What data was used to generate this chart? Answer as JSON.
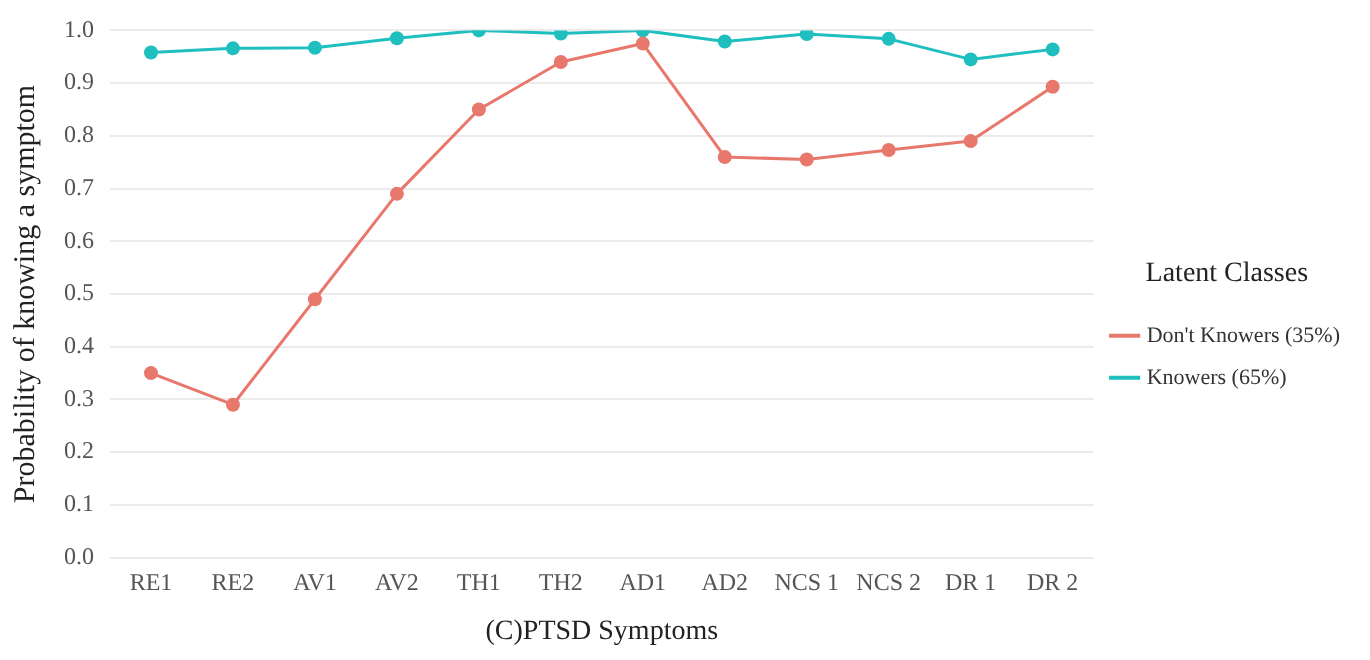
{
  "chart_data": {
    "type": "line",
    "xlabel": "(C)PTSD Symptoms",
    "ylabel": "Probability of knowing a symptom",
    "legend_title": "Latent Classes",
    "categories": [
      "RE1",
      "RE2",
      "AV1",
      "AV2",
      "TH1",
      "TH2",
      "AD1",
      "AD2",
      "NCS 1",
      "NCS 2",
      "DR 1",
      "DR 2"
    ],
    "series": [
      {
        "name": "Don't Knowers (35%)",
        "color": "#e8776c",
        "values": [
          0.35,
          0.29,
          0.49,
          0.69,
          0.85,
          0.94,
          0.975,
          0.76,
          0.755,
          0.773,
          0.79,
          0.893
        ]
      },
      {
        "name": "Knowers (65%)",
        "color": "#1fbfbf",
        "values": [
          0.958,
          0.966,
          0.967,
          0.985,
          1.0,
          0.994,
          1.0,
          0.979,
          0.993,
          0.984,
          0.945,
          0.964
        ]
      }
    ],
    "ylim": [
      0,
      1
    ],
    "yticks": [
      {
        "value": 0,
        "label": "0.0"
      },
      0.1,
      0.2,
      0.3,
      0.4,
      0.5,
      0.6,
      0.7,
      0.8,
      0.9,
      {
        "value": 1,
        "label": "1.0"
      }
    ],
    "grid": "y",
    "legend": "right",
    "marker": "circle",
    "line_style": "solid"
  }
}
